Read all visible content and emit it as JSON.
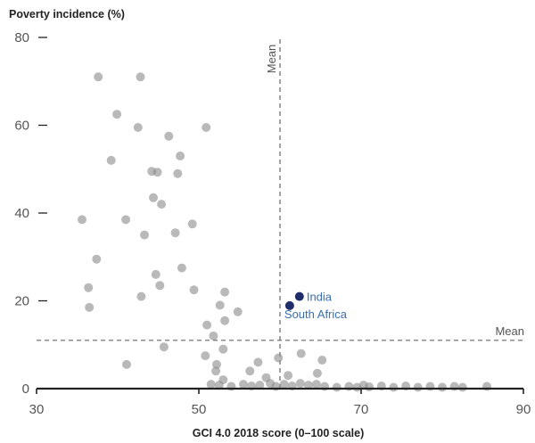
{
  "chart_data": {
    "type": "scatter",
    "title": "Poverty incidence (%)",
    "xlabel": "GCI 4.0 2018 score (0–100 scale)",
    "ylabel": "",
    "xlim": [
      30,
      90
    ],
    "ylim": [
      0,
      80
    ],
    "xticks": [
      "30",
      "50",
      "70",
      "90"
    ],
    "yticks": [
      "0",
      "20",
      "40",
      "60",
      "80"
    ],
    "mean_x": {
      "label": "Mean",
      "value": 60
    },
    "mean_y": {
      "label": "Mean",
      "value": 11
    },
    "highlights": [
      {
        "label": "India",
        "x": 62.4,
        "y": 21,
        "color": "#1f2d6b",
        "label_color": "#3a6fb0"
      },
      {
        "label": "South Africa",
        "x": 61.2,
        "y": 18.9,
        "color": "#1f2d6b",
        "label_color": "#3a6fb0"
      }
    ],
    "points": [
      [
        37.6,
        71
      ],
      [
        42.8,
        71
      ],
      [
        39.9,
        62.5
      ],
      [
        42.5,
        59.5
      ],
      [
        46.3,
        57.5
      ],
      [
        50.9,
        59.5
      ],
      [
        39.2,
        52
      ],
      [
        44.2,
        49.5
      ],
      [
        44.9,
        49.3
      ],
      [
        47.4,
        49
      ],
      [
        47.7,
        53
      ],
      [
        44.4,
        43.5
      ],
      [
        45.4,
        42
      ],
      [
        35.6,
        38.5
      ],
      [
        41,
        38.5
      ],
      [
        47.1,
        35.5
      ],
      [
        49.2,
        37.5
      ],
      [
        43.3,
        35
      ],
      [
        37.4,
        29.5
      ],
      [
        47.9,
        27.5
      ],
      [
        44.7,
        26
      ],
      [
        36.4,
        23
      ],
      [
        45.2,
        23.5
      ],
      [
        42.9,
        21
      ],
      [
        49.4,
        22.5
      ],
      [
        53.2,
        22
      ],
      [
        36.5,
        18.5
      ],
      [
        52.6,
        19
      ],
      [
        54.8,
        17.5
      ],
      [
        53.2,
        15.5
      ],
      [
        51,
        14.5
      ],
      [
        51.8,
        12
      ],
      [
        45.7,
        9.5
      ],
      [
        53,
        9
      ],
      [
        59.8,
        7
      ],
      [
        65.2,
        6.5
      ],
      [
        50.8,
        7.5
      ],
      [
        52.2,
        5.5
      ],
      [
        57.3,
        6
      ],
      [
        62.6,
        8
      ],
      [
        41.1,
        5.5
      ],
      [
        52.1,
        4
      ],
      [
        53,
        2
      ],
      [
        56.3,
        4
      ],
      [
        58.3,
        2.5
      ],
      [
        61,
        3
      ],
      [
        64.6,
        3.5
      ],
      [
        51.5,
        1
      ],
      [
        52.5,
        0.8
      ],
      [
        54,
        0.5
      ],
      [
        55.5,
        1
      ],
      [
        56.5,
        0.6
      ],
      [
        57.5,
        0.8
      ],
      [
        58.8,
        1.2
      ],
      [
        59.5,
        0.5
      ],
      [
        60.5,
        1
      ],
      [
        61.5,
        0.6
      ],
      [
        62.5,
        1.2
      ],
      [
        63.5,
        0.8
      ],
      [
        64.5,
        1
      ],
      [
        65.5,
        0.5
      ],
      [
        67,
        0.3
      ],
      [
        68.5,
        0.5
      ],
      [
        69.5,
        0.3
      ],
      [
        70.3,
        0.8
      ],
      [
        71,
        0.4
      ],
      [
        72.5,
        0.6
      ],
      [
        74,
        0.3
      ],
      [
        75.5,
        0.6
      ],
      [
        77,
        0.3
      ],
      [
        78.5,
        0.5
      ],
      [
        80,
        0.3
      ],
      [
        81.5,
        0.5
      ],
      [
        82.5,
        0.3
      ],
      [
        85.5,
        0.5
      ]
    ],
    "grid": false,
    "colors": {
      "points": "#8a8a8a",
      "axis": "#222222",
      "reference_lines": "#666666"
    }
  }
}
